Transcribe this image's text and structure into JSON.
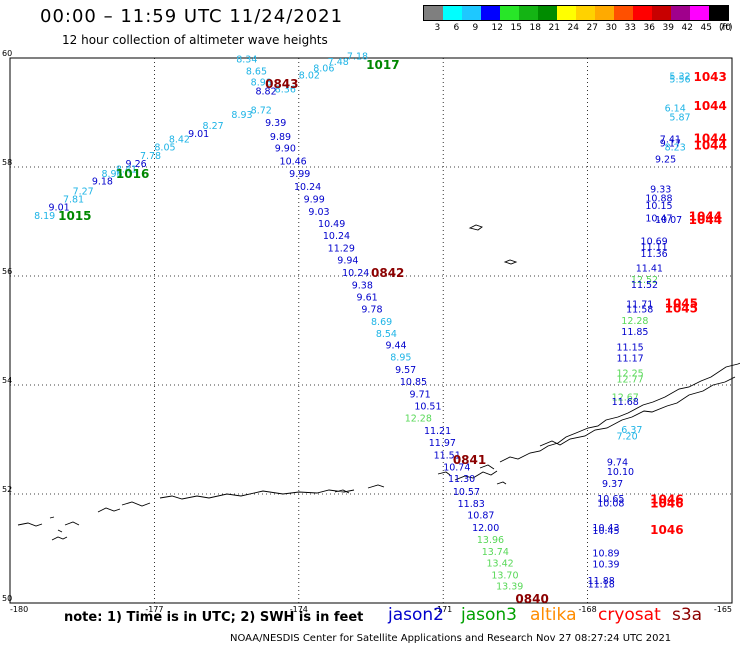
{
  "header": {
    "title": "00:00 – 11:59 UTC 11/24/2021",
    "subtitle": "12 hour collection of altimeter wave heights"
  },
  "colorbar": {
    "unit_note": "(ft)",
    "labels": [
      "3",
      "6",
      "9",
      "12",
      "15",
      "18",
      "21",
      "24",
      "27",
      "30",
      "33",
      "36",
      "39",
      "42",
      "45",
      "70"
    ],
    "colors": [
      "#7f7f7f",
      "#00ffff",
      "#1ec8ff",
      "#0000ff",
      "#28e628",
      "#14b414",
      "#008c00",
      "#ffff00",
      "#ffd200",
      "#ffaa00",
      "#ff5000",
      "#ff0000",
      "#c80000",
      "#a0008c",
      "#ff00ff",
      "#000000"
    ]
  },
  "map": {
    "lat_labels": [
      "60",
      "58",
      "56",
      "54",
      "52",
      "50"
    ],
    "lon_labels": [
      "-180",
      "-177",
      "-174",
      "-171",
      "-168",
      "-165"
    ]
  },
  "footer": {
    "note": "note: 1) Time is in UTC; 2) SWH is in feet",
    "satellites": [
      {
        "name": "jason2",
        "color": "#0000cc"
      },
      {
        "name": "jason3",
        "color": "#00a000"
      },
      {
        "name": "altika",
        "color": "#ff8c00"
      },
      {
        "name": "cryosat",
        "color": "#ff0000"
      },
      {
        "name": "s3a",
        "color": "#8b0000"
      }
    ],
    "credit": "NOAA/NESDIS Center for Satellite Applications and Research   Nov 27 08:27:24 UTC 2021"
  },
  "tracks": {
    "colors": {
      "cyan": "#1eb4e6",
      "blue": "#0000cc",
      "lgreen": "#58d858",
      "green": "#008800",
      "dred": "#8b0000",
      "red": "#ff0000"
    },
    "track1": [
      {
        "v": "7.18",
        "c": "cyan",
        "lon": -173.0,
        "lat": 59.97
      },
      {
        "v": "7.48",
        "c": "cyan",
        "lon": -173.4,
        "lat": 59.87
      },
      {
        "v": "8.06",
        "c": "cyan",
        "lon": -173.7,
        "lat": 59.75
      },
      {
        "v": "8.02",
        "c": "cyan",
        "lon": -174.0,
        "lat": 59.62
      },
      {
        "v": "8.36",
        "c": "cyan",
        "lon": -174.5,
        "lat": 59.37
      },
      {
        "v": "8.72",
        "c": "cyan",
        "lon": -175.0,
        "lat": 58.98
      },
      {
        "v": "8.93",
        "c": "cyan",
        "lon": -175.4,
        "lat": 58.9
      },
      {
        "v": "8.27",
        "c": "cyan",
        "lon": -176.0,
        "lat": 58.7
      },
      {
        "v": "9.01",
        "c": "blue",
        "lon": -176.3,
        "lat": 58.55
      },
      {
        "v": "8.42",
        "c": "cyan",
        "lon": -176.7,
        "lat": 58.45
      },
      {
        "v": "8.05",
        "c": "cyan",
        "lon": -177.0,
        "lat": 58.3
      },
      {
        "v": "7.78",
        "c": "cyan",
        "lon": -177.3,
        "lat": 58.15
      },
      {
        "v": "9.26",
        "c": "blue",
        "lon": -177.6,
        "lat": 58.0
      },
      {
        "v": "8.41",
        "c": "cyan",
        "lon": -177.8,
        "lat": 57.9
      },
      {
        "v": "8.96",
        "c": "cyan",
        "lon": -178.1,
        "lat": 57.82
      },
      {
        "v": "9.18",
        "c": "blue",
        "lon": -178.3,
        "lat": 57.68
      },
      {
        "v": "7.27",
        "c": "cyan",
        "lon": -178.7,
        "lat": 57.5
      },
      {
        "v": "7.81",
        "c": "cyan",
        "lon": -178.9,
        "lat": 57.35
      },
      {
        "v": "9.01",
        "c": "blue",
        "lon": -179.2,
        "lat": 57.2
      },
      {
        "v": "8.19",
        "c": "cyan",
        "lon": -179.5,
        "lat": 57.05
      }
    ],
    "track2": [
      {
        "v": "8.34",
        "c": "cyan",
        "lon": -175.3,
        "lat": 59.92
      },
      {
        "v": "8.65",
        "c": "cyan",
        "lon": -175.1,
        "lat": 59.7
      },
      {
        "v": "8.98",
        "c": "cyan",
        "lon": -175.0,
        "lat": 59.5
      },
      {
        "v": "8.82",
        "c": "blue",
        "lon": -174.9,
        "lat": 59.33
      },
      {
        "v": "9.39",
        "c": "blue",
        "lon": -174.7,
        "lat": 58.75
      },
      {
        "v": "9.89",
        "c": "blue",
        "lon": -174.6,
        "lat": 58.5
      },
      {
        "v": "9.90",
        "c": "blue",
        "lon": -174.5,
        "lat": 58.28
      },
      {
        "v": "10.46",
        "c": "blue",
        "lon": -174.4,
        "lat": 58.05
      },
      {
        "v": "9.99",
        "c": "blue",
        "lon": -174.2,
        "lat": 57.82
      },
      {
        "v": "10.24",
        "c": "blue",
        "lon": -174.1,
        "lat": 57.58
      },
      {
        "v": "9.99",
        "c": "blue",
        "lon": -173.9,
        "lat": 57.35
      },
      {
        "v": "9.03",
        "c": "blue",
        "lon": -173.8,
        "lat": 57.12
      },
      {
        "v": "10.49",
        "c": "blue",
        "lon": -173.6,
        "lat": 56.9
      },
      {
        "v": "10.24",
        "c": "blue",
        "lon": -173.5,
        "lat": 56.68
      },
      {
        "v": "11.29",
        "c": "blue",
        "lon": -173.4,
        "lat": 56.45
      },
      {
        "v": "9.94",
        "c": "blue",
        "lon": -173.2,
        "lat": 56.23
      },
      {
        "v": "10.24",
        "c": "blue",
        "lon": -173.1,
        "lat": 56.0
      },
      {
        "v": "9.38",
        "c": "blue",
        "lon": -172.9,
        "lat": 55.77
      },
      {
        "v": "9.61",
        "c": "blue",
        "lon": -172.8,
        "lat": 55.55
      },
      {
        "v": "9.78",
        "c": "blue",
        "lon": -172.7,
        "lat": 55.33
      },
      {
        "v": "8.69",
        "c": "cyan",
        "lon": -172.5,
        "lat": 55.1
      },
      {
        "v": "8.54",
        "c": "cyan",
        "lon": -172.4,
        "lat": 54.88
      },
      {
        "v": "9.44",
        "c": "blue",
        "lon": -172.2,
        "lat": 54.67
      },
      {
        "v": "8.95",
        "c": "cyan",
        "lon": -172.1,
        "lat": 54.45
      },
      {
        "v": "9.57",
        "c": "blue",
        "lon": -172.0,
        "lat": 54.22
      },
      {
        "v": "10.85",
        "c": "blue",
        "lon": -171.9,
        "lat": 54.0
      },
      {
        "v": "9.71",
        "c": "blue",
        "lon": -171.7,
        "lat": 53.77
      },
      {
        "v": "10.51",
        "c": "blue",
        "lon": -171.6,
        "lat": 53.55
      },
      {
        "v": "12.28",
        "c": "lgreen",
        "lon": -171.8,
        "lat": 53.33
      },
      {
        "v": "11.21",
        "c": "blue",
        "lon": -171.4,
        "lat": 53.1
      },
      {
        "v": "11.97",
        "c": "blue",
        "lon": -171.3,
        "lat": 52.88
      },
      {
        "v": "11.51",
        "c": "blue",
        "lon": -171.2,
        "lat": 52.65
      },
      {
        "v": "10.74",
        "c": "blue",
        "lon": -171.0,
        "lat": 52.43
      },
      {
        "v": "11.30",
        "c": "blue",
        "lon": -170.9,
        "lat": 52.22
      },
      {
        "v": "10.57",
        "c": "blue",
        "lon": -170.8,
        "lat": 51.98
      },
      {
        "v": "11.83",
        "c": "blue",
        "lon": -170.7,
        "lat": 51.76
      },
      {
        "v": "10.87",
        "c": "blue",
        "lon": -170.5,
        "lat": 51.55
      },
      {
        "v": "12.00",
        "c": "blue",
        "lon": -170.4,
        "lat": 51.32
      },
      {
        "v": "13.96",
        "c": "lgreen",
        "lon": -170.3,
        "lat": 51.1
      },
      {
        "v": "13.74",
        "c": "lgreen",
        "lon": -170.2,
        "lat": 50.88
      },
      {
        "v": "13.42",
        "c": "lgreen",
        "lon": -170.1,
        "lat": 50.67
      },
      {
        "v": "13.70",
        "c": "lgreen",
        "lon": -170.0,
        "lat": 50.45
      },
      {
        "v": "13.39",
        "c": "lgreen",
        "lon": -169.9,
        "lat": 50.25
      }
    ],
    "track3": [
      {
        "v": "5.32",
        "c": "cyan",
        "lon": -166.3,
        "lat": 59.61
      },
      {
        "v": "5.56",
        "c": "cyan",
        "lon": -166.3,
        "lat": 59.55
      },
      {
        "v": "6.14",
        "c": "cyan",
        "lon": -166.4,
        "lat": 59.02
      },
      {
        "v": "5.87",
        "c": "cyan",
        "lon": -166.3,
        "lat": 58.85
      },
      {
        "v": "7.41",
        "c": "blue",
        "lon": -166.5,
        "lat": 58.45
      },
      {
        "v": "9.17",
        "c": "blue",
        "lon": -166.5,
        "lat": 58.38
      },
      {
        "v": "8.23",
        "c": "cyan",
        "lon": -166.4,
        "lat": 58.3
      },
      {
        "v": "9.25",
        "c": "blue",
        "lon": -166.6,
        "lat": 58.08
      },
      {
        "v": "9.33",
        "c": "blue",
        "lon": -166.7,
        "lat": 57.53
      },
      {
        "v": "10.88",
        "c": "blue",
        "lon": -166.8,
        "lat": 57.37
      },
      {
        "v": "10.15",
        "c": "blue",
        "lon": -166.8,
        "lat": 57.23
      },
      {
        "v": "10.47",
        "c": "blue",
        "lon": -166.8,
        "lat": 57.0
      },
      {
        "v": "10.07",
        "c": "blue",
        "lon": -166.6,
        "lat": 56.97
      },
      {
        "v": "10.69",
        "c": "blue",
        "lon": -166.9,
        "lat": 56.58
      },
      {
        "v": "11.11",
        "c": "blue",
        "lon": -166.9,
        "lat": 56.48
      },
      {
        "v": "11.36",
        "c": "blue",
        "lon": -166.9,
        "lat": 56.35
      },
      {
        "v": "11.41",
        "c": "blue",
        "lon": -167.0,
        "lat": 56.08
      },
      {
        "v": "12.52",
        "c": "lgreen",
        "lon": -167.1,
        "lat": 55.87
      },
      {
        "v": "11.52",
        "c": "blue",
        "lon": -167.1,
        "lat": 55.78
      },
      {
        "v": "11.71",
        "c": "blue",
        "lon": -167.2,
        "lat": 55.42
      },
      {
        "v": "11.58",
        "c": "blue",
        "lon": -167.2,
        "lat": 55.33
      },
      {
        "v": "12.28",
        "c": "lgreen",
        "lon": -167.3,
        "lat": 55.12
      },
      {
        "v": "11.85",
        "c": "blue",
        "lon": -167.3,
        "lat": 54.92
      },
      {
        "v": "11.15",
        "c": "blue",
        "lon": -167.4,
        "lat": 54.63
      },
      {
        "v": "11.17",
        "c": "blue",
        "lon": -167.4,
        "lat": 54.43
      },
      {
        "v": "12.25",
        "c": "lgreen",
        "lon": -167.4,
        "lat": 54.16
      },
      {
        "v": "12.77",
        "c": "lgreen",
        "lon": -167.4,
        "lat": 54.05
      },
      {
        "v": "12.67",
        "c": "lgreen",
        "lon": -167.5,
        "lat": 53.72
      },
      {
        "v": "11.68",
        "c": "blue",
        "lon": -167.5,
        "lat": 53.63
      },
      {
        "v": "6.37",
        "c": "cyan",
        "lon": -167.3,
        "lat": 53.12
      },
      {
        "v": "7.20",
        "c": "cyan",
        "lon": -167.4,
        "lat": 53.0
      },
      {
        "v": "9.74",
        "c": "blue",
        "lon": -167.6,
        "lat": 52.52
      },
      {
        "v": "10.10",
        "c": "blue",
        "lon": -167.6,
        "lat": 52.35
      },
      {
        "v": "9.37",
        "c": "blue",
        "lon": -167.7,
        "lat": 52.13
      },
      {
        "v": "10.65",
        "c": "blue",
        "lon": -167.8,
        "lat": 51.85
      },
      {
        "v": "10.08",
        "c": "blue",
        "lon": -167.8,
        "lat": 51.77
      },
      {
        "v": "10.43",
        "c": "blue",
        "lon": -167.9,
        "lat": 51.32
      },
      {
        "v": "10.45",
        "c": "blue",
        "lon": -167.9,
        "lat": 51.27
      },
      {
        "v": "10.89",
        "c": "blue",
        "lon": -167.9,
        "lat": 50.85
      },
      {
        "v": "10.39",
        "c": "blue",
        "lon": -167.9,
        "lat": 50.65
      },
      {
        "v": "11.88",
        "c": "blue",
        "lon": -168.0,
        "lat": 50.35
      },
      {
        "v": "11.18",
        "c": "blue",
        "lon": -168.0,
        "lat": 50.28
      }
    ],
    "time_labels": [
      {
        "v": "1017",
        "c": "green",
        "lon": -172.6,
        "lat": 59.8
      },
      {
        "v": "0843",
        "c": "dred",
        "lon": -174.7,
        "lat": 59.45
      },
      {
        "v": "1016",
        "c": "green",
        "lon": -177.8,
        "lat": 57.8
      },
      {
        "v": "1015",
        "c": "green",
        "lon": -179.0,
        "lat": 57.03
      },
      {
        "v": "0842",
        "c": "dred",
        "lon": -172.5,
        "lat": 55.98
      },
      {
        "v": "0841",
        "c": "dred",
        "lon": -170.8,
        "lat": 52.55
      },
      {
        "v": "0840",
        "c": "dred",
        "lon": -169.5,
        "lat": 50.0
      },
      {
        "v": "1043",
        "c": "red",
        "lon": -165.8,
        "lat": 59.58
      },
      {
        "v": "1044",
        "c": "red",
        "lon": -165.8,
        "lat": 59.05
      },
      {
        "v": "1044",
        "c": "red",
        "lon": -165.8,
        "lat": 58.45
      },
      {
        "v": "1044",
        "c": "red",
        "lon": -165.8,
        "lat": 58.32
      },
      {
        "v": "1044",
        "c": "red",
        "lon": -165.9,
        "lat": 57.02
      },
      {
        "v": "1044",
        "c": "red",
        "lon": -165.9,
        "lat": 56.95
      },
      {
        "v": "1045",
        "c": "red",
        "lon": -166.4,
        "lat": 55.42
      },
      {
        "v": "1045",
        "c": "red",
        "lon": -166.4,
        "lat": 55.33
      },
      {
        "v": "1046",
        "c": "red",
        "lon": -166.7,
        "lat": 51.83
      },
      {
        "v": "1046",
        "c": "red",
        "lon": -166.7,
        "lat": 51.75
      },
      {
        "v": "1046",
        "c": "red",
        "lon": -166.7,
        "lat": 51.27
      }
    ]
  }
}
